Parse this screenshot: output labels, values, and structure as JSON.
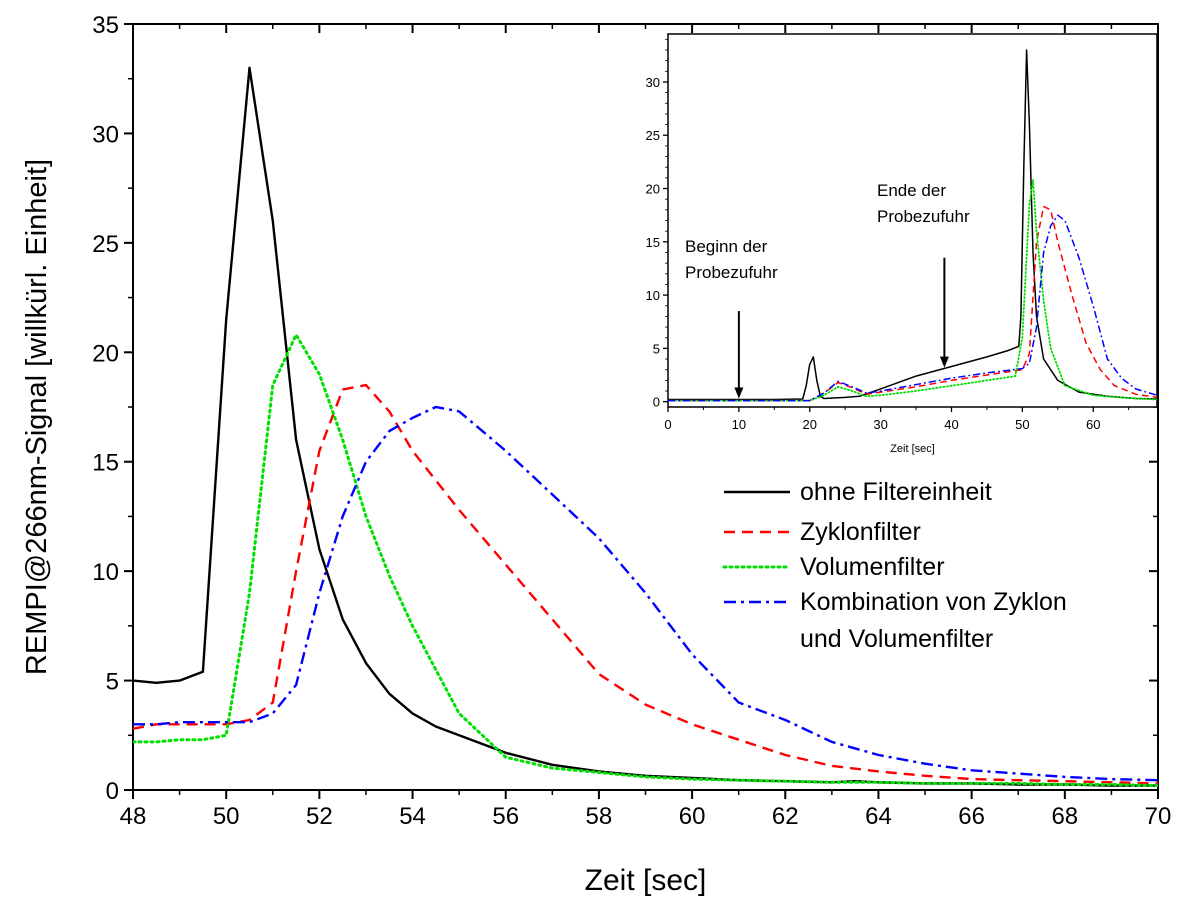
{
  "chart_data": [
    {
      "id": "main",
      "type": "line",
      "xlabel": "Zeit [sec]",
      "ylabel": "REMPI@266nm-Signal [willkürl. Einheit]",
      "xlim": [
        48,
        70
      ],
      "ylim": [
        0,
        35
      ],
      "xticks": [
        48,
        50,
        52,
        54,
        56,
        58,
        60,
        62,
        64,
        66,
        68,
        70
      ],
      "yticks": [
        0,
        5,
        10,
        15,
        20,
        25,
        30,
        35
      ],
      "legend_position": "right",
      "series": [
        {
          "name": "ohne Filtereinheit",
          "color": "#000000",
          "dash": "solid",
          "x": [
            48,
            48.5,
            49,
            49.5,
            50,
            50.5,
            51,
            51.5,
            52,
            52.5,
            53,
            53.5,
            54,
            54.5,
            55,
            55.5,
            56,
            57,
            58,
            59,
            60,
            61,
            62,
            63,
            63.5,
            64,
            65,
            66,
            67,
            68,
            69,
            70
          ],
          "y": [
            5.0,
            4.9,
            5.0,
            5.4,
            21.5,
            33.0,
            26.0,
            16.0,
            11.0,
            7.8,
            5.8,
            4.4,
            3.5,
            2.9,
            2.5,
            2.1,
            1.7,
            1.15,
            0.85,
            0.65,
            0.55,
            0.45,
            0.4,
            0.35,
            0.4,
            0.35,
            0.3,
            0.3,
            0.25,
            0.25,
            0.2,
            0.2
          ]
        },
        {
          "name": "Zyklonfilter",
          "color": "#ff0000",
          "dash": "dashed",
          "x": [
            48,
            48.5,
            49,
            49.5,
            50,
            50.5,
            51,
            51.5,
            52,
            52.5,
            53,
            53.5,
            54,
            55,
            56,
            57,
            58,
            59,
            60,
            61,
            62,
            63,
            64,
            65,
            66,
            67,
            68,
            69,
            70
          ],
          "y": [
            2.8,
            3.0,
            3.0,
            3.0,
            3.0,
            3.2,
            4.0,
            10.0,
            15.5,
            18.3,
            18.5,
            17.3,
            15.5,
            12.8,
            10.3,
            7.8,
            5.3,
            3.9,
            3.0,
            2.3,
            1.6,
            1.1,
            0.85,
            0.65,
            0.5,
            0.45,
            0.4,
            0.35,
            0.3
          ]
        },
        {
          "name": "Volumenfilter",
          "color": "#00e000",
          "dash": "dotted",
          "x": [
            48,
            48.5,
            49,
            49.5,
            50,
            50.5,
            51,
            51.5,
            52,
            52.5,
            53,
            53.5,
            54,
            54.5,
            55,
            56,
            57,
            58,
            59,
            60,
            61,
            62,
            63,
            64,
            65,
            66,
            67,
            68,
            69,
            70
          ],
          "y": [
            2.2,
            2.2,
            2.3,
            2.3,
            2.5,
            9.0,
            18.5,
            20.8,
            19.0,
            16.0,
            12.5,
            9.8,
            7.5,
            5.5,
            3.5,
            1.5,
            1.0,
            0.8,
            0.6,
            0.5,
            0.45,
            0.4,
            0.35,
            0.35,
            0.3,
            0.3,
            0.3,
            0.25,
            0.25,
            0.2
          ]
        },
        {
          "name": "Kombination von Zyklon und Volumenfilter",
          "legend_lines": [
            "Kombination von Zyklon",
            "und Volumenfilter"
          ],
          "color": "#0000ff",
          "dash": "dashdot",
          "x": [
            48,
            48.5,
            49,
            49.5,
            50,
            50.5,
            51,
            51.5,
            52,
            52.5,
            53,
            53.5,
            54,
            54.5,
            55,
            56,
            57,
            58,
            59,
            60,
            61,
            62,
            63,
            64,
            65,
            66,
            67,
            68,
            69,
            70
          ],
          "y": [
            3.0,
            3.0,
            3.1,
            3.1,
            3.1,
            3.1,
            3.5,
            4.8,
            9.0,
            12.5,
            15.0,
            16.4,
            17.0,
            17.5,
            17.3,
            15.5,
            13.5,
            11.5,
            9.0,
            6.2,
            4.0,
            3.2,
            2.2,
            1.6,
            1.2,
            0.9,
            0.75,
            0.6,
            0.5,
            0.45
          ]
        }
      ]
    },
    {
      "id": "inset",
      "type": "line",
      "xlabel": "Zeit [sec]",
      "ylabel": "",
      "xlim": [
        0,
        69
      ],
      "ylim": [
        -0.5,
        34.5
      ],
      "xticks": [
        0,
        10,
        20,
        30,
        40,
        50,
        60
      ],
      "yticks": [
        0,
        5,
        10,
        15,
        20,
        25,
        30
      ],
      "annotations": [
        {
          "lines": [
            "Beginn der",
            "Probezufuhr"
          ],
          "arrow_x": 10,
          "arrow_top_y": 8.5,
          "arrow_tip_y": 0.3
        },
        {
          "lines": [
            "Ende der",
            "Probezufuhr"
          ],
          "arrow_x": 39,
          "arrow_top_y": 13.5,
          "arrow_tip_y": 3.2
        }
      ],
      "series": [
        {
          "name": "ohne Filtereinheit",
          "color": "#000000",
          "dash": "solid",
          "x": [
            0,
            5,
            10,
            15,
            19,
            19.5,
            20,
            20.5,
            21,
            21.5,
            22,
            25,
            27,
            30,
            35,
            40,
            45,
            48,
            49.5,
            49.8,
            50.2,
            50.6,
            51,
            51.5,
            52,
            53,
            55,
            58,
            62,
            66,
            69
          ],
          "y": [
            0.2,
            0.2,
            0.2,
            0.2,
            0.25,
            1.5,
            3.5,
            4.2,
            2.0,
            0.5,
            0.3,
            0.4,
            0.5,
            1.2,
            2.4,
            3.3,
            4.2,
            4.8,
            5.2,
            8.0,
            22.0,
            33.0,
            26.0,
            14.0,
            8.0,
            4.0,
            2.0,
            0.9,
            0.5,
            0.3,
            0.25
          ]
        },
        {
          "name": "Zyklonfilter",
          "color": "#ff0000",
          "dash": "dashed",
          "x": [
            0,
            10,
            20,
            22,
            24,
            26,
            28,
            30,
            35,
            40,
            45,
            50,
            51,
            52,
            53,
            54,
            55,
            57,
            59,
            61,
            63,
            66,
            69
          ],
          "y": [
            0.1,
            0.1,
            0.1,
            0.8,
            1.8,
            1.3,
            0.7,
            0.9,
            1.4,
            2.0,
            2.5,
            3.0,
            4.5,
            15.0,
            18.3,
            18.0,
            15.0,
            10.0,
            5.5,
            3.0,
            1.5,
            0.7,
            0.4
          ]
        },
        {
          "name": "Volumenfilter",
          "color": "#00e000",
          "dash": "dotted",
          "x": [
            0,
            10,
            20,
            22,
            24,
            26,
            28,
            30,
            35,
            40,
            45,
            49,
            50,
            51,
            51.5,
            52,
            53,
            54,
            56,
            60,
            66,
            69
          ],
          "y": [
            0.1,
            0.1,
            0.1,
            0.6,
            1.4,
            1.0,
            0.5,
            0.6,
            1.0,
            1.5,
            2.0,
            2.4,
            6.0,
            18.5,
            20.8,
            16.0,
            9.5,
            5.0,
            1.5,
            0.6,
            0.3,
            0.2
          ]
        },
        {
          "name": "Kombination von Zyklon und Volumenfilter",
          "color": "#0000ff",
          "dash": "dashdot",
          "x": [
            0,
            10,
            20,
            22,
            24,
            26,
            28,
            30,
            35,
            40,
            45,
            50,
            51,
            52,
            53,
            54,
            55,
            56,
            58,
            60,
            62,
            64,
            66,
            69
          ],
          "y": [
            0.1,
            0.1,
            0.1,
            0.8,
            1.9,
            1.4,
            0.8,
            1.0,
            1.6,
            2.2,
            2.7,
            3.1,
            3.6,
            7.0,
            14.0,
            16.5,
            17.5,
            17.0,
            13.5,
            9.0,
            4.0,
            2.2,
            1.2,
            0.6
          ]
        }
      ]
    }
  ]
}
